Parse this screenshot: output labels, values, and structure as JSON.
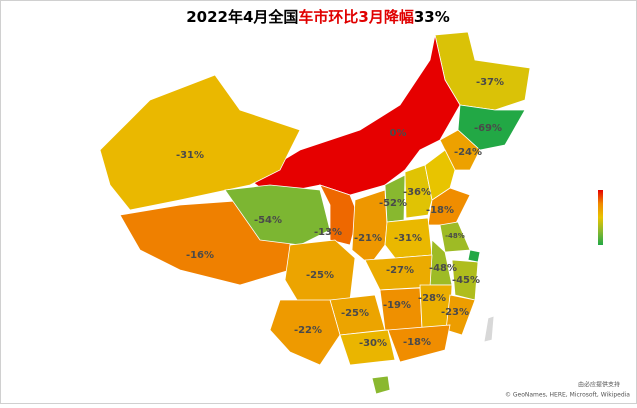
{
  "title_parts": [
    "2022年4月全国",
    "车市环比3月降幅",
    "33%"
  ],
  "regions": {
    "values": [
      -37,
      -69,
      -24,
      0,
      -31,
      -16,
      -54,
      -13,
      -52,
      -36,
      -18,
      -21,
      -31,
      -48,
      -48,
      -45,
      -25,
      -27,
      -25,
      -22,
      -19,
      -28,
      -23,
      -30,
      -18
    ],
    "value_labels": [
      "-37%",
      "-69%",
      "-24%",
      "0%",
      "-31%",
      "-16%",
      "-54%",
      "-13%",
      "-52%",
      "-36%",
      "-18%",
      "-21%",
      "-31%",
      "-48%",
      "-48%",
      "-45%",
      "-25%",
      "-27%",
      "-25%",
      "-22%",
      "-19%",
      "-28%",
      "-23%",
      "-30%",
      "-18%"
    ],
    "colorscale": [
      "#e60000",
      "#f08a00",
      "#e8c400",
      "#8ab82f",
      "#22a845"
    ]
  },
  "attribution": [
    "由必应提供支持",
    "© GeoNames, HERE, Microsoft, Wikipedia"
  ]
}
